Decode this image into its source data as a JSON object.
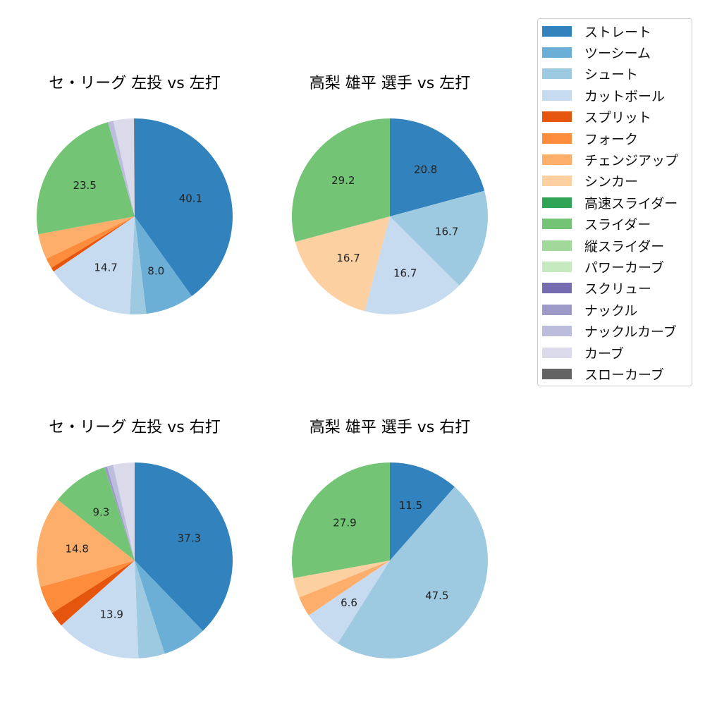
{
  "pitch_types": [
    {
      "name": "ストレート",
      "color": "#3182bd"
    },
    {
      "name": "ツーシーム",
      "color": "#6baed6"
    },
    {
      "name": "シュート",
      "color": "#9ecae1"
    },
    {
      "name": "カットボール",
      "color": "#c6dbef"
    },
    {
      "name": "スプリット",
      "color": "#e6550d"
    },
    {
      "name": "フォーク",
      "color": "#fd8d3c"
    },
    {
      "name": "チェンジアップ",
      "color": "#fdae6b"
    },
    {
      "name": "シンカー",
      "color": "#fdd0a2"
    },
    {
      "name": "高速スライダー",
      "color": "#31a354"
    },
    {
      "name": "スライダー",
      "color": "#74c476"
    },
    {
      "name": "縦スライダー",
      "color": "#a1d99b"
    },
    {
      "name": "パワーカーブ",
      "color": "#c7e9c0"
    },
    {
      "name": "スクリュー",
      "color": "#756bb1"
    },
    {
      "name": "ナックル",
      "color": "#9e9ac8"
    },
    {
      "name": "ナックルカーブ",
      "color": "#bcbddc"
    },
    {
      "name": "カーブ",
      "color": "#dadaeb"
    },
    {
      "name": "スローカーブ",
      "color": "#636363"
    }
  ],
  "chart_data": [
    {
      "type": "pie",
      "title": "セ・リーグ 左投 vs 左打",
      "slices": [
        {
          "label": "ストレート",
          "value": 40.1,
          "shown": "40.1"
        },
        {
          "label": "ツーシーム",
          "value": 8.0,
          "shown": "8.0"
        },
        {
          "label": "シュート",
          "value": 2.7,
          "shown": ""
        },
        {
          "label": "カットボール",
          "value": 14.7,
          "shown": "14.7"
        },
        {
          "label": "スプリット",
          "value": 0.7,
          "shown": ""
        },
        {
          "label": "フォーク",
          "value": 1.7,
          "shown": ""
        },
        {
          "label": "チェンジアップ",
          "value": 4.2,
          "shown": ""
        },
        {
          "label": "スライダー",
          "value": 23.5,
          "shown": "23.5"
        },
        {
          "label": "ナックルカーブ",
          "value": 0.9,
          "shown": ""
        },
        {
          "label": "カーブ",
          "value": 3.4,
          "shown": ""
        },
        {
          "label": "スローカーブ",
          "value": 0.1,
          "shown": ""
        }
      ]
    },
    {
      "type": "pie",
      "title": "高梨 雄平 選手 vs 左打",
      "slices": [
        {
          "label": "ストレート",
          "value": 20.8,
          "shown": "20.8"
        },
        {
          "label": "シュート",
          "value": 16.7,
          "shown": "16.7"
        },
        {
          "label": "カットボール",
          "value": 16.7,
          "shown": "16.7"
        },
        {
          "label": "シンカー",
          "value": 16.7,
          "shown": "16.7"
        },
        {
          "label": "スライダー",
          "value": 29.2,
          "shown": "29.2"
        }
      ]
    },
    {
      "type": "pie",
      "title": "セ・リーグ 左投 vs 右打",
      "slices": [
        {
          "label": "ストレート",
          "value": 37.3,
          "shown": "37.3"
        },
        {
          "label": "ツーシーム",
          "value": 7.2,
          "shown": ""
        },
        {
          "label": "シュート",
          "value": 4.3,
          "shown": ""
        },
        {
          "label": "カットボール",
          "value": 13.9,
          "shown": "13.9"
        },
        {
          "label": "スプリット",
          "value": 2.5,
          "shown": ""
        },
        {
          "label": "フォーク",
          "value": 4.6,
          "shown": ""
        },
        {
          "label": "チェンジアップ",
          "value": 14.8,
          "shown": "14.8"
        },
        {
          "label": "スライダー",
          "value": 9.3,
          "shown": "9.3"
        },
        {
          "label": "ナックル",
          "value": 0.4,
          "shown": ""
        },
        {
          "label": "ナックルカーブ",
          "value": 1.0,
          "shown": ""
        },
        {
          "label": "カーブ",
          "value": 3.5,
          "shown": ""
        }
      ]
    },
    {
      "type": "pie",
      "title": "高梨 雄平 選手 vs 右打",
      "slices": [
        {
          "label": "ストレート",
          "value": 11.5,
          "shown": "11.5"
        },
        {
          "label": "シュート",
          "value": 47.5,
          "shown": "47.5"
        },
        {
          "label": "カットボール",
          "value": 6.6,
          "shown": "6.6"
        },
        {
          "label": "チェンジアップ",
          "value": 3.3,
          "shown": ""
        },
        {
          "label": "シンカー",
          "value": 3.3,
          "shown": ""
        },
        {
          "label": "スライダー",
          "value": 27.9,
          "shown": "27.9"
        }
      ]
    }
  ]
}
